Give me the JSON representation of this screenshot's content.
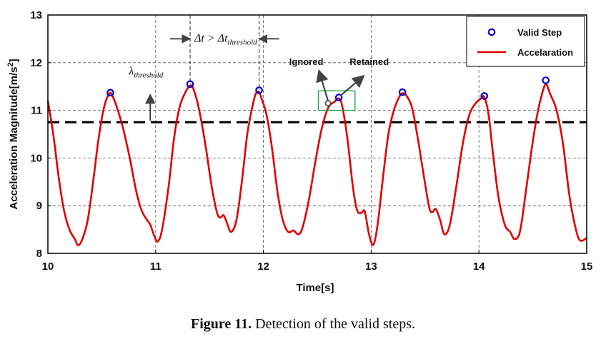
{
  "chart_data": {
    "type": "line",
    "xlabel": "Time[s]",
    "ylabel": "Acceleration Magnitude[m/s",
    "ylabel_sup": "2",
    "ylabel_end": "]",
    "xlim": [
      10,
      15
    ],
    "ylim": [
      8,
      13
    ],
    "x_ticks": [
      "10",
      "11",
      "12",
      "13",
      "14",
      "15"
    ],
    "y_ticks": [
      "8",
      "9",
      "10",
      "11",
      "12",
      "13"
    ],
    "grid": true,
    "legend_position": "top-right",
    "series": [
      {
        "name": "Accelaration",
        "color": "#e00000",
        "points": [
          [
            10.0,
            11.2
          ],
          [
            10.05,
            10.5
          ],
          [
            10.1,
            9.6
          ],
          [
            10.15,
            8.9
          ],
          [
            10.2,
            8.5
          ],
          [
            10.25,
            8.3
          ],
          [
            10.28,
            8.17
          ],
          [
            10.32,
            8.3
          ],
          [
            10.37,
            8.7
          ],
          [
            10.42,
            9.5
          ],
          [
            10.47,
            10.4
          ],
          [
            10.52,
            11.05
          ],
          [
            10.57,
            11.35
          ],
          [
            10.6,
            11.3
          ],
          [
            10.65,
            11.0
          ],
          [
            10.7,
            10.6
          ],
          [
            10.76,
            10.0
          ],
          [
            10.82,
            9.3
          ],
          [
            10.87,
            8.9
          ],
          [
            10.92,
            8.7
          ],
          [
            10.95,
            8.6
          ],
          [
            10.99,
            8.35
          ],
          [
            11.02,
            8.25
          ],
          [
            11.06,
            8.5
          ],
          [
            11.12,
            9.4
          ],
          [
            11.17,
            10.4
          ],
          [
            11.22,
            11.05
          ],
          [
            11.27,
            11.35
          ],
          [
            11.32,
            11.52
          ],
          [
            11.35,
            11.45
          ],
          [
            11.4,
            11.05
          ],
          [
            11.46,
            10.3
          ],
          [
            11.52,
            9.4
          ],
          [
            11.57,
            8.85
          ],
          [
            11.6,
            8.75
          ],
          [
            11.63,
            8.8
          ],
          [
            11.66,
            8.65
          ],
          [
            11.7,
            8.45
          ],
          [
            11.75,
            8.7
          ],
          [
            11.8,
            9.5
          ],
          [
            11.85,
            10.5
          ],
          [
            11.9,
            11.1
          ],
          [
            11.93,
            11.35
          ],
          [
            11.96,
            11.38
          ],
          [
            11.99,
            11.2
          ],
          [
            12.03,
            10.9
          ],
          [
            12.08,
            10.2
          ],
          [
            12.13,
            9.3
          ],
          [
            12.18,
            8.7
          ],
          [
            12.23,
            8.45
          ],
          [
            12.28,
            8.48
          ],
          [
            12.32,
            8.4
          ],
          [
            12.36,
            8.52
          ],
          [
            12.42,
            9.1
          ],
          [
            12.48,
            9.9
          ],
          [
            12.54,
            10.6
          ],
          [
            12.6,
            11.05
          ],
          [
            12.66,
            11.18
          ],
          [
            12.7,
            11.25
          ],
          [
            12.73,
            11.1
          ],
          [
            12.78,
            10.4
          ],
          [
            12.83,
            9.4
          ],
          [
            12.87,
            8.9
          ],
          [
            12.91,
            8.85
          ],
          [
            12.94,
            8.88
          ],
          [
            12.98,
            8.4
          ],
          [
            13.02,
            8.18
          ],
          [
            13.06,
            8.6
          ],
          [
            13.11,
            9.6
          ],
          [
            13.16,
            10.5
          ],
          [
            13.21,
            11.0
          ],
          [
            13.26,
            11.28
          ],
          [
            13.29,
            11.36
          ],
          [
            13.33,
            11.3
          ],
          [
            13.38,
            11.05
          ],
          [
            13.43,
            10.45
          ],
          [
            13.49,
            9.6
          ],
          [
            13.54,
            8.95
          ],
          [
            13.57,
            8.87
          ],
          [
            13.6,
            8.93
          ],
          [
            13.64,
            8.7
          ],
          [
            13.68,
            8.4
          ],
          [
            13.73,
            8.6
          ],
          [
            13.79,
            9.4
          ],
          [
            13.85,
            10.3
          ],
          [
            13.91,
            10.9
          ],
          [
            13.97,
            11.15
          ],
          [
            14.02,
            11.25
          ],
          [
            14.05,
            11.28
          ],
          [
            14.09,
            10.9
          ],
          [
            14.13,
            10.1
          ],
          [
            14.18,
            9.2
          ],
          [
            14.24,
            8.6
          ],
          [
            14.29,
            8.45
          ],
          [
            14.33,
            8.3
          ],
          [
            14.38,
            8.45
          ],
          [
            14.43,
            9.2
          ],
          [
            14.49,
            10.2
          ],
          [
            14.54,
            10.9
          ],
          [
            14.58,
            11.3
          ],
          [
            14.62,
            11.55
          ],
          [
            14.66,
            11.35
          ],
          [
            14.72,
            11.0
          ],
          [
            14.78,
            10.3
          ],
          [
            14.84,
            9.2
          ],
          [
            14.9,
            8.5
          ],
          [
            14.94,
            8.27
          ],
          [
            15.0,
            8.32
          ]
        ]
      },
      {
        "name": "Valid Step",
        "color": "#0000cc",
        "marker": "circle",
        "points": [
          [
            10.58,
            11.37
          ],
          [
            11.32,
            11.55
          ],
          [
            11.96,
            11.42
          ],
          [
            12.7,
            11.27
          ],
          [
            13.29,
            11.38
          ],
          [
            14.05,
            11.3
          ],
          [
            14.62,
            11.63
          ]
        ]
      }
    ],
    "threshold": {
      "y": 10.75,
      "style": "dashed",
      "color": "#000000"
    },
    "annotations": {
      "lambda_main": "λ",
      "lambda_sub": "threshold",
      "delta_main": "Δt > Δt",
      "delta_sub": "threshold",
      "ignored": "Ignored",
      "retained": "Retained",
      "ignored_point": [
        12.6,
        11.15
      ],
      "retained_point": [
        12.7,
        11.26
      ]
    }
  },
  "caption": {
    "label": "Figure 11.",
    "text": " Detection of the valid steps."
  }
}
